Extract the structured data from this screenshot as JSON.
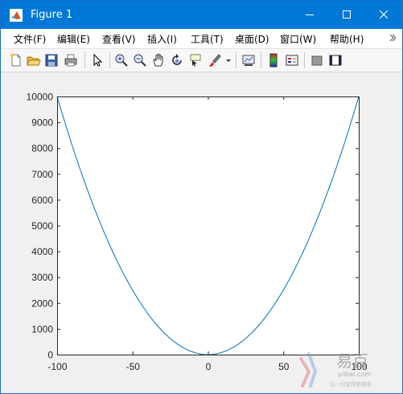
{
  "window": {
    "title": "Figure 1"
  },
  "menu": {
    "items": [
      {
        "label": "文件(F)"
      },
      {
        "label": "编辑(E)"
      },
      {
        "label": "查看(V)"
      },
      {
        "label": "插入(I)"
      },
      {
        "label": "工具(T)"
      },
      {
        "label": "桌面(D)"
      },
      {
        "label": "窗口(W)"
      },
      {
        "label": "帮助(H)"
      }
    ]
  },
  "toolbar": {
    "icons": [
      "new-figure-icon",
      "open-file-icon",
      "save-icon",
      "print-icon",
      "pointer-icon",
      "zoom-in-icon",
      "zoom-out-icon",
      "pan-icon",
      "rotate-icon",
      "data-cursor-icon",
      "brush-icon",
      "link-plot-icon",
      "colorbar-icon",
      "legend-icon",
      "hide-plot-tools-icon",
      "show-plot-tools-icon"
    ]
  },
  "chart_data": {
    "type": "line",
    "function": "y = x^2",
    "x": [
      -100,
      -90,
      -80,
      -70,
      -60,
      -50,
      -40,
      -30,
      -20,
      -10,
      0,
      10,
      20,
      30,
      40,
      50,
      60,
      70,
      80,
      90,
      100
    ],
    "y": [
      10000,
      8100,
      6400,
      4900,
      3600,
      2500,
      1600,
      900,
      400,
      100,
      0,
      100,
      400,
      900,
      1600,
      2500,
      3600,
      4900,
      6400,
      8100,
      10000
    ],
    "xlim": [
      -100,
      100
    ],
    "ylim": [
      0,
      10000
    ],
    "xticks": [
      "-100",
      "-50",
      "0",
      "50",
      "100"
    ],
    "yticks": [
      "0",
      "1000",
      "2000",
      "3000",
      "4000",
      "5000",
      "6000",
      "7000",
      "8000",
      "9000",
      "10000"
    ],
    "line_color": "#0072bd",
    "grid": false
  },
  "watermark": {
    "brand": "易百",
    "url": "yiibai.com",
    "slogan": "让一切变得更简单"
  },
  "colors": {
    "titlebar": "#0078d7",
    "line": "#0072bd"
  }
}
